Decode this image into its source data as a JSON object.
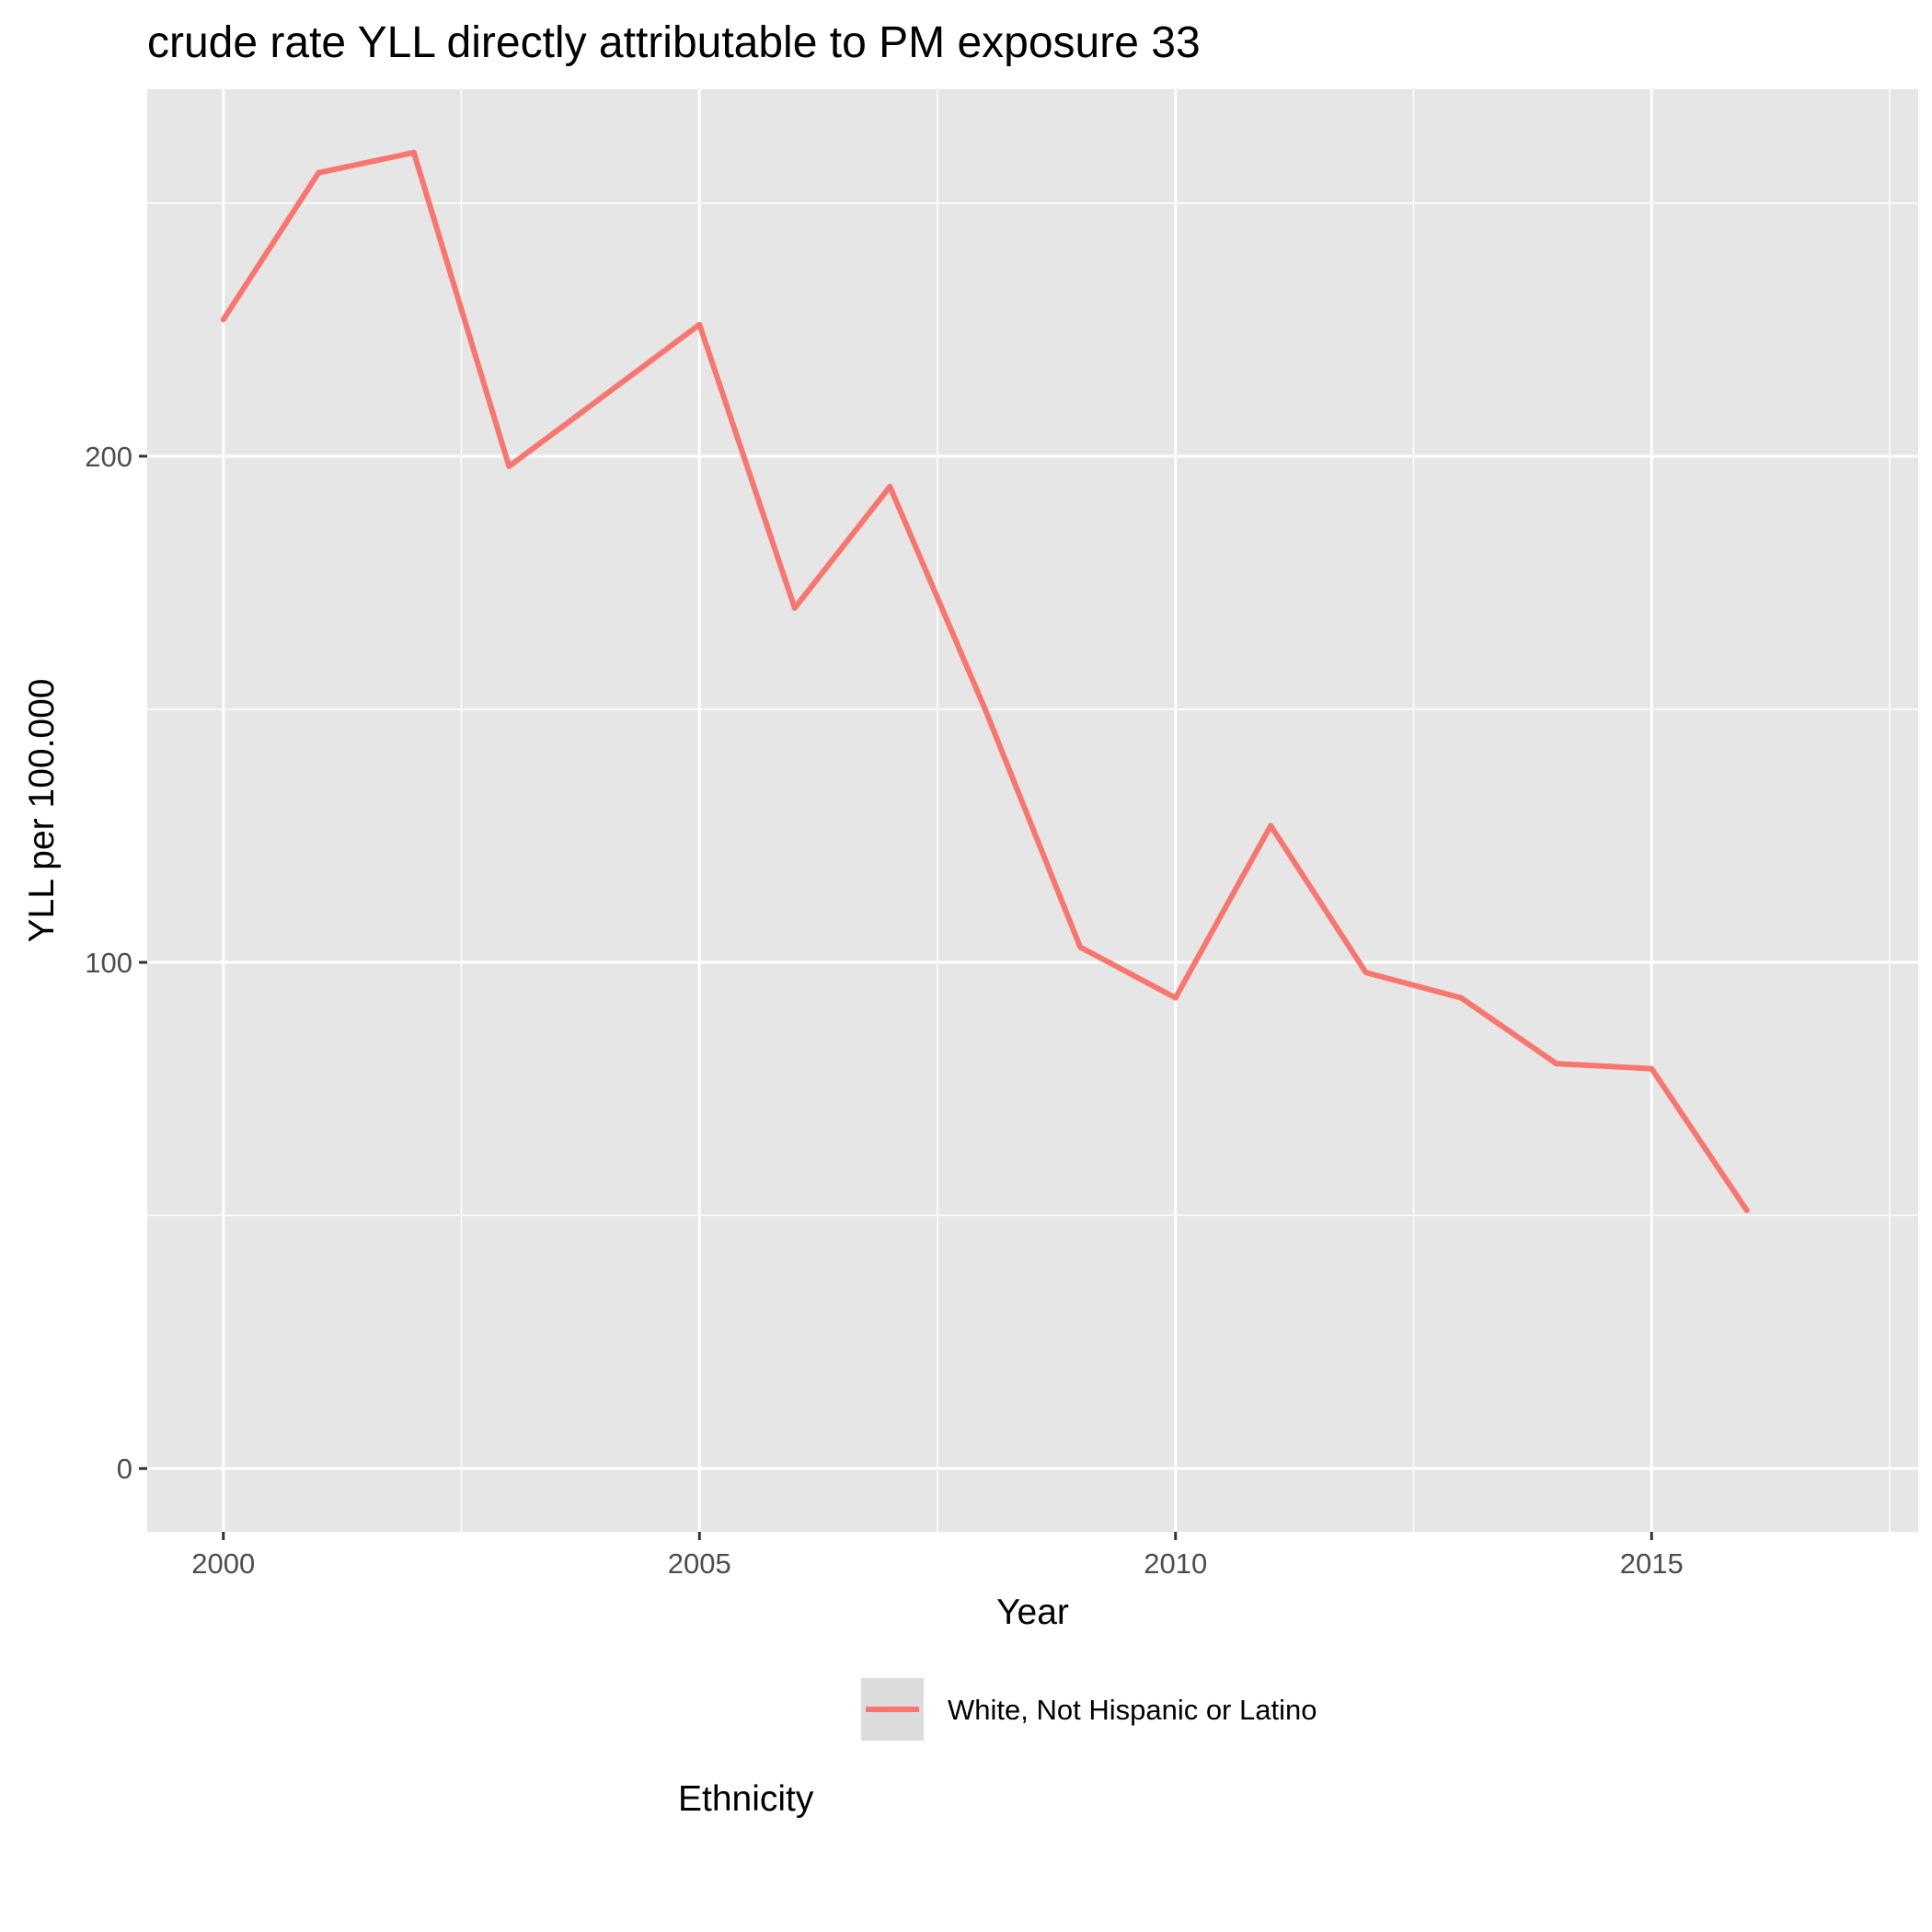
{
  "chart_data": {
    "type": "line",
    "title": "crude rate YLL directly attributable to PM exposure 33",
    "xlabel": "Year",
    "ylabel": "YLL per 100.000",
    "x": [
      2000,
      2001,
      2002,
      2003,
      2004,
      2005,
      2006,
      2007,
      2008,
      2009,
      2010,
      2011,
      2012,
      2013,
      2014,
      2015,
      2016
    ],
    "series": [
      {
        "name": "White, Not Hispanic or Latino",
        "color": "#F8766D",
        "values": [
          227,
          256,
          260,
          198,
          212,
          226,
          170,
          194,
          150,
          103,
          93,
          127,
          98,
          93,
          80,
          79,
          51
        ]
      }
    ],
    "xlim": [
      1999.2,
      2017.8
    ],
    "ylim": [
      -12.5,
      272.5
    ],
    "x_ticks": [
      "2000",
      "2005",
      "2010",
      "2015"
    ],
    "y_ticks": [
      "0",
      "100",
      "200"
    ],
    "grid": true,
    "panel_background": "#E6E6E6",
    "legend_title": "Ethnicity",
    "legend_position": "bottom"
  }
}
